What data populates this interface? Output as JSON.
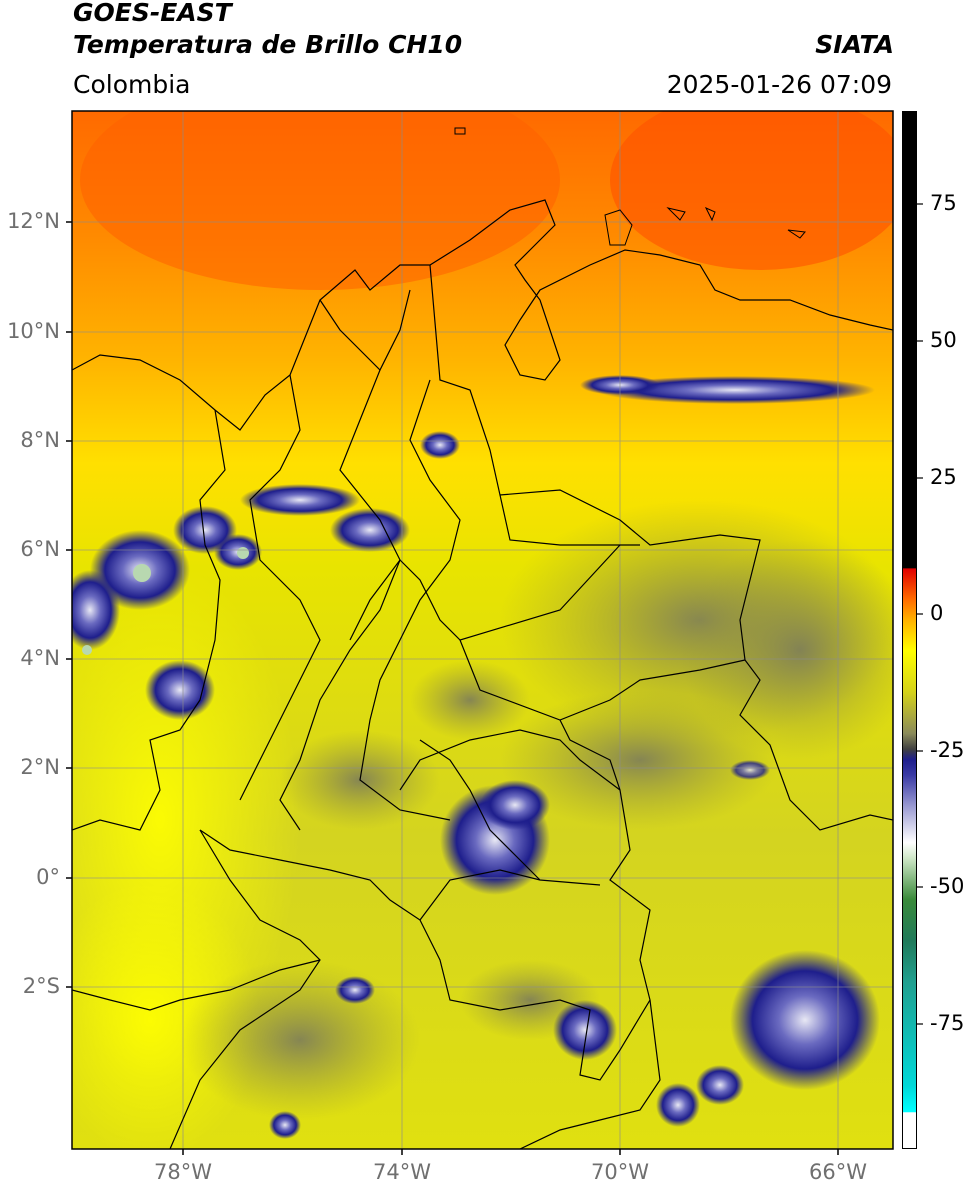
{
  "header": {
    "satellite": "GOES-EAST",
    "product": "Temperatura de Brillo CH10",
    "source": "SIATA",
    "region": "Colombia",
    "timestamp": "2025-01-26 07:09"
  },
  "axes": {
    "lat_labels": [
      "12°N",
      "10°N",
      "8°N",
      "6°N",
      "4°N",
      "2°N",
      "0°",
      "2°S"
    ],
    "lon_labels": [
      "78°W",
      "74°W",
      "70°W",
      "66°W"
    ]
  },
  "colorbar": {
    "labels": [
      "75",
      "50",
      "25",
      "0",
      "-25",
      "-50",
      "-75"
    ]
  },
  "colors": {
    "warm": "#ff7a00",
    "mid": "#ffff00",
    "cold_cloud": "#1e1e8c",
    "border": "#000000"
  }
}
